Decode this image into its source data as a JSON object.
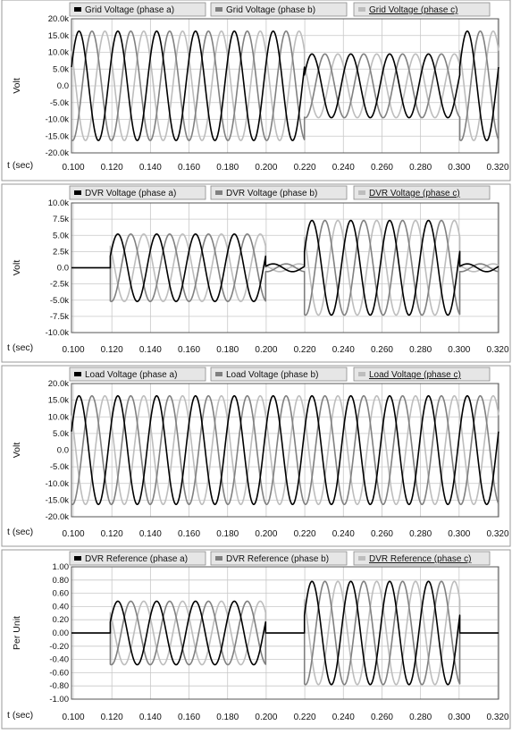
{
  "xaxis": {
    "label": "t (sec)",
    "ticks": [
      "0.100",
      "0.120",
      "0.140",
      "0.160",
      "0.180",
      "0.200",
      "0.220",
      "0.240",
      "0.260",
      "0.280",
      "0.300",
      "0.320"
    ],
    "range": [
      0.1,
      0.32
    ]
  },
  "colors": {
    "phase_a": "#000000",
    "phase_b": "#808080",
    "phase_c": "#bdbdbd",
    "grid": "#c8c8c8",
    "frame": "#555555",
    "legend_bg": "#e6e6e6"
  },
  "chart_data": [
    {
      "type": "line",
      "ylabel": "Volt",
      "ylim": [
        -20000,
        20000
      ],
      "yticks": [
        "20.0k",
        "15.0k",
        "10.0k",
        "5.0k",
        "0.0",
        "-5.0k",
        "-10.0k",
        "-15.0k",
        "-20.0k"
      ],
      "legend": [
        "Grid Voltage (phase a)",
        "Grid Voltage (phase b)",
        "Grid Voltage (phase c)"
      ],
      "frequency_hz": 50,
      "segments": [
        {
          "t_start": 0.1,
          "t_end": 0.22,
          "amplitude": 16300
        },
        {
          "t_start": 0.22,
          "t_end": 0.3,
          "amplitude": 9500
        },
        {
          "t_start": 0.3,
          "t_end": 0.32,
          "amplitude": 16300
        }
      ]
    },
    {
      "type": "line",
      "ylabel": "Volt",
      "ylim": [
        -10000,
        10000
      ],
      "yticks": [
        "10.0k",
        "7.5k",
        "5.0k",
        "2.5k",
        "0.0",
        "-2.5k",
        "-5.0k",
        "-7.5k",
        "-10.0k"
      ],
      "legend": [
        "DVR Voltage (phase a)",
        "DVR Voltage (phase b)",
        "DVR Voltage (phase c)"
      ],
      "frequency_hz": 50,
      "segments": [
        {
          "t_start": 0.1,
          "t_end": 0.12,
          "amplitude": 0
        },
        {
          "t_start": 0.12,
          "t_end": 0.2,
          "amplitude": 5200
        },
        {
          "t_start": 0.2,
          "t_end": 0.22,
          "amplitude": 600
        },
        {
          "t_start": 0.22,
          "t_end": 0.3,
          "amplitude": 7300
        },
        {
          "t_start": 0.3,
          "t_end": 0.32,
          "amplitude": 600
        }
      ]
    },
    {
      "type": "line",
      "ylabel": "Volt",
      "ylim": [
        -20000,
        20000
      ],
      "yticks": [
        "20.0k",
        "15.0k",
        "10.0k",
        "5.0k",
        "0.0",
        "-5.0k",
        "-10.0k",
        "-15.0k",
        "-20.0k"
      ],
      "legend": [
        "Load Voltage (phase a)",
        "Load Voltage (phase b)",
        "Load Voltage (phase c)"
      ],
      "frequency_hz": 50,
      "segments": [
        {
          "t_start": 0.1,
          "t_end": 0.32,
          "amplitude": 16300
        }
      ]
    },
    {
      "type": "line",
      "ylabel": "Per Unit",
      "ylim": [
        -1.0,
        1.0
      ],
      "yticks": [
        "1.00",
        "0.80",
        "0.60",
        "0.40",
        "0.20",
        "0.00",
        "-0.20",
        "-0.40",
        "-0.60",
        "-0.80",
        "-1.00"
      ],
      "legend": [
        "DVR Reference (phase a)",
        "DVR Reference (phase b)",
        "DVR Reference (phase c)"
      ],
      "frequency_hz": 50,
      "segments": [
        {
          "t_start": 0.1,
          "t_end": 0.12,
          "amplitude": 0
        },
        {
          "t_start": 0.12,
          "t_end": 0.2,
          "amplitude": 0.48
        },
        {
          "t_start": 0.2,
          "t_end": 0.22,
          "amplitude": 0
        },
        {
          "t_start": 0.22,
          "t_end": 0.3,
          "amplitude": 0.78
        },
        {
          "t_start": 0.3,
          "t_end": 0.32,
          "amplitude": 0
        }
      ]
    }
  ]
}
